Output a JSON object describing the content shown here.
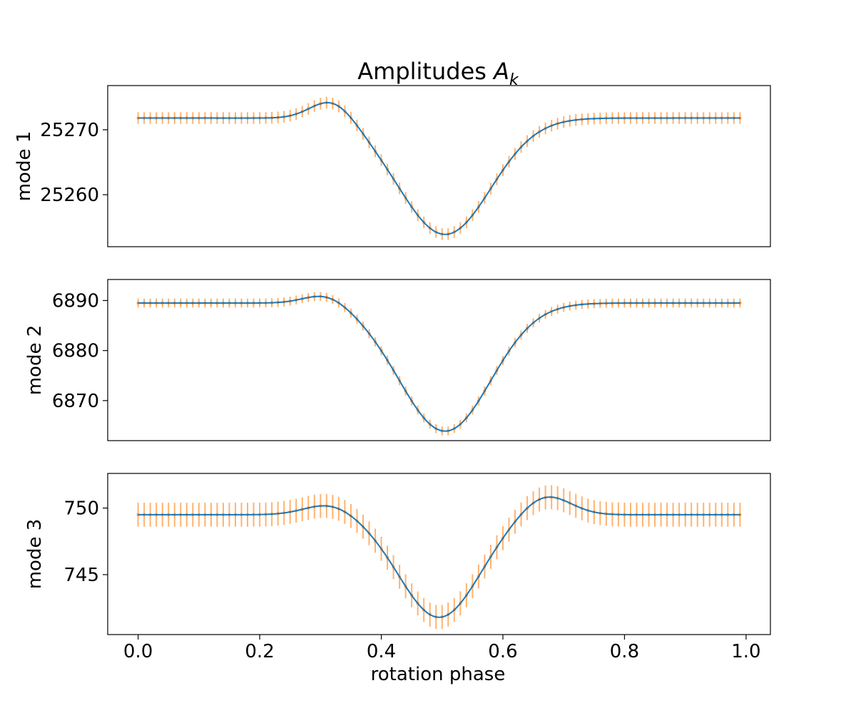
{
  "figure": {
    "title_main": "Amplitudes ",
    "title_symbol": "A",
    "title_subscript": "k",
    "xlabel": "rotation phase"
  },
  "colors": {
    "model_line": "#1f77b4",
    "error_bars": "#ff7f0e"
  },
  "chart_data": [
    {
      "type": "line",
      "ylabel": "mode 1",
      "xlim": [
        -0.05,
        1.04
      ],
      "ylim": [
        25252,
        25276.8
      ],
      "xticks": [],
      "yticks": [
        25260,
        25270
      ],
      "ytick_labels": [
        "25260",
        "25270"
      ],
      "baseline": 25271.8,
      "bump": {
        "center": 0.32,
        "width": 0.035,
        "amplitude": 3.1
      },
      "dip": {
        "center": 0.505,
        "width": 0.075,
        "amplitude": 17.9
      },
      "error": 0.9,
      "phase_step": 0.01,
      "phase_max": 0.99,
      "series": [
        {
          "kind": "errorbar",
          "marker": "point"
        },
        {
          "kind": "model-line"
        }
      ]
    },
    {
      "type": "line",
      "ylabel": "mode 2",
      "xlim": [
        -0.05,
        1.04
      ],
      "ylim": [
        6862,
        6894.2
      ],
      "xticks": [],
      "yticks": [
        6870,
        6880,
        6890
      ],
      "ytick_labels": [
        "6870",
        "6880",
        "6890"
      ],
      "baseline": 6889.5,
      "bump": {
        "center": 0.31,
        "width": 0.035,
        "amplitude": 2.0
      },
      "dip": {
        "center": 0.505,
        "width": 0.075,
        "amplitude": 25.6
      },
      "error": 0.9,
      "phase_step": 0.01,
      "phase_max": 0.99,
      "series": [
        {
          "kind": "errorbar",
          "marker": "point"
        },
        {
          "kind": "model-line"
        }
      ]
    },
    {
      "type": "line",
      "ylabel": "mode 3",
      "xlim": [
        -0.05,
        1.04
      ],
      "ylim": [
        740.5,
        752.6
      ],
      "xticks": [
        0.0,
        0.2,
        0.4,
        0.6,
        0.8,
        1.0
      ],
      "xtick_labels": [
        "0.0",
        "0.2",
        "0.4",
        "0.6",
        "0.8",
        "1.0"
      ],
      "yticks": [
        745,
        750
      ],
      "ytick_labels": [
        "745",
        "750"
      ],
      "baseline": 749.5,
      "bump": {
        "center": 0.315,
        "width": 0.04,
        "amplitude": 0.8
      },
      "bump2": {
        "center": 0.67,
        "width": 0.04,
        "amplitude": 1.5
      },
      "dip": {
        "center": 0.495,
        "width": 0.065,
        "amplitude": 7.7
      },
      "error": 0.9,
      "phase_step": 0.01,
      "phase_max": 0.99,
      "series": [
        {
          "kind": "errorbar",
          "marker": "point"
        },
        {
          "kind": "model-line"
        }
      ]
    }
  ]
}
